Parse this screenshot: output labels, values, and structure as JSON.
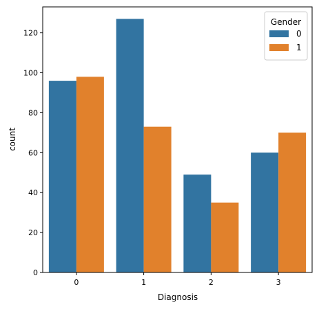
{
  "chart_data": {
    "type": "bar",
    "categories": [
      "0",
      "1",
      "2",
      "3"
    ],
    "series": [
      {
        "name": "0",
        "color": "#3274a1",
        "values": [
          96,
          127,
          49,
          60
        ]
      },
      {
        "name": "1",
        "color": "#e1812c",
        "values": [
          98,
          73,
          35,
          70
        ]
      }
    ],
    "xlabel": "Diagnosis",
    "ylabel": "count",
    "ylim": [
      0,
      133
    ],
    "yticks": [
      0,
      20,
      40,
      60,
      80,
      100,
      120
    ],
    "legend": {
      "title": "Gender",
      "position": "top-right"
    },
    "grid": false
  }
}
